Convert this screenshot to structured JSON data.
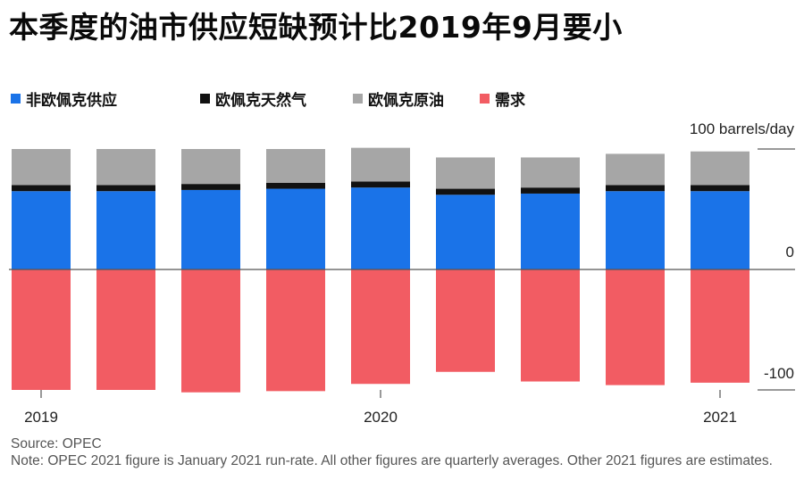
{
  "title": "本季度的油市供应短缺预计比2019年9月要小",
  "legend": [
    {
      "label": "非欧佩克供应",
      "color": "#1a73e8"
    },
    {
      "label": "欧佩克天然气",
      "color": "#111111"
    },
    {
      "label": "欧佩克原油",
      "color": "#a6a6a6"
    },
    {
      "label": "需求",
      "color": "#f25c63"
    }
  ],
  "source": "Source: OPEC",
  "note": "Note: OPEC 2021 figure is January 2021 run-rate. All other figures are quarterly averages. Other 2021 figures are estimates.",
  "chart_data": {
    "type": "bar",
    "stacked": true,
    "unit_label": "100 barrels/day",
    "y_ticks": [
      {
        "value": 100,
        "label": "100 barrels/day"
      },
      {
        "value": 0,
        "label": "0"
      },
      {
        "value": -100,
        "label": "-100"
      }
    ],
    "ylim": [
      -103,
      103
    ],
    "x_labels": [
      {
        "index": 0,
        "label": "2019"
      },
      {
        "index": 4,
        "label": "2020"
      },
      {
        "index": 8,
        "label": "2021"
      }
    ],
    "series": [
      {
        "name": "非欧佩克供应",
        "color": "#1a73e8",
        "values": [
          65,
          65,
          66,
          67,
          68,
          62,
          63,
          65,
          65
        ]
      },
      {
        "name": "欧佩克天然气",
        "color": "#111111",
        "values": [
          5,
          5,
          5,
          5,
          5,
          5,
          5,
          5,
          5
        ]
      },
      {
        "name": "欧佩克原油",
        "color": "#a6a6a6",
        "values": [
          30,
          30,
          29,
          28,
          28,
          26,
          25,
          26,
          28
        ]
      },
      {
        "name": "需求",
        "color": "#f25c63",
        "values": [
          -100,
          -100,
          -102,
          -101,
          -95,
          -85,
          -93,
          -96,
          -94
        ]
      }
    ]
  }
}
